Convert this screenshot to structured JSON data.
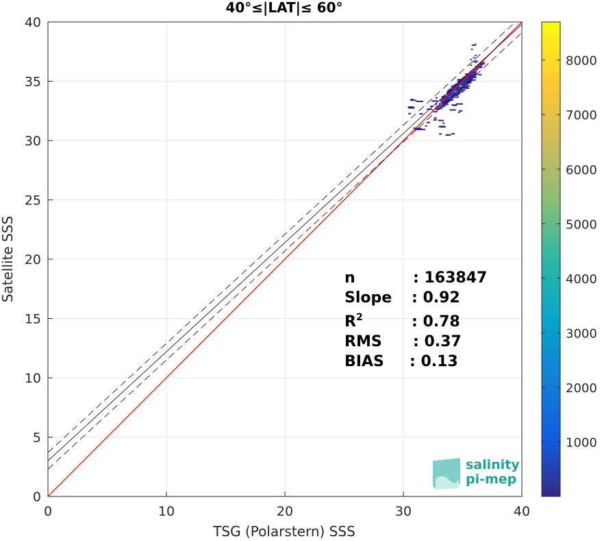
{
  "chart_data": {
    "type": "heatmap",
    "title": "40°≤|LAT|≤ 60°",
    "xlabel": "TSG (Polarstern) SSS",
    "ylabel": "Satellite SSS",
    "xlim": [
      0,
      40
    ],
    "ylim": [
      0,
      40
    ],
    "xticks": [
      "0",
      "10",
      "20",
      "30",
      "40"
    ],
    "yticks": [
      "0",
      "5",
      "10",
      "15",
      "20",
      "25",
      "30",
      "35",
      "40"
    ],
    "grid": true,
    "colorbar": {
      "range": [
        0,
        8700
      ],
      "ticks": [
        "1000",
        "2000",
        "3000",
        "4000",
        "5000",
        "6000",
        "7000",
        "8000"
      ],
      "colormap": "parula"
    },
    "lines": [
      {
        "name": "identity",
        "color": "#ff0000",
        "style": "solid",
        "x": [
          0,
          40
        ],
        "y": [
          0,
          40
        ]
      },
      {
        "name": "regression",
        "color": "#000000",
        "style": "solid",
        "x": [
          0,
          40
        ],
        "y": [
          3.0,
          39.8
        ]
      },
      {
        "name": "regression-plus",
        "color": "#000000",
        "style": "dashed",
        "x": [
          0,
          40
        ],
        "y": [
          3.7,
          40.5
        ]
      },
      {
        "name": "regression-minus",
        "color": "#000000",
        "style": "dashed",
        "x": [
          0,
          40
        ],
        "y": [
          2.3,
          39.1
        ]
      }
    ],
    "density_cluster": {
      "center": [
        34.5,
        34.5
      ],
      "x_range": [
        29.5,
        37.5
      ],
      "y_range": [
        29.5,
        38.5
      ],
      "peak_color": "#2dc28f"
    }
  },
  "stats": [
    {
      "label": "n",
      "value": ": 163847"
    },
    {
      "label": "Slope",
      "value": ": 0.92"
    },
    {
      "label": "R",
      "sup": "2",
      "value": ": 0.78"
    },
    {
      "label": "RMS",
      "value": ": 0.37"
    },
    {
      "label": "BIAS",
      "value": ": 0.13"
    }
  ],
  "logo": {
    "line1": "salinity",
    "line2": "pi-mep"
  }
}
